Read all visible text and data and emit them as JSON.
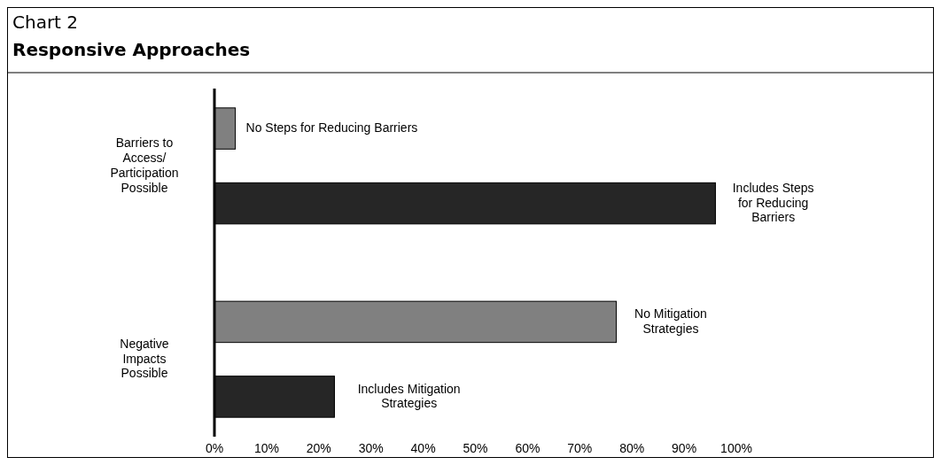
{
  "chart_data": {
    "type": "bar",
    "orientation": "horizontal",
    "title": "Chart 2",
    "subtitle": "Responsive Approaches",
    "categories": [
      "Barriers to\nAccess/\nParticipation\nPossible",
      "Negative\nImpacts\nPossible"
    ],
    "series": [
      {
        "color": "#808080",
        "values": [
          4,
          77
        ],
        "value_labels": [
          "No Steps for Reducing Barriers",
          "No Mitigation\nStrategies"
        ]
      },
      {
        "color": "#262626",
        "values": [
          96,
          23
        ],
        "value_labels": [
          "Includes Steps\nfor Reducing\nBarriers",
          "Includes Mitigation\nStrategies"
        ]
      }
    ],
    "xlim": [
      0,
      100
    ],
    "xticks": [
      {
        "value": 0,
        "label": "0%"
      },
      {
        "value": 10,
        "label": "10%"
      },
      {
        "value": 20,
        "label": "20%"
      },
      {
        "value": 30,
        "label": "30%"
      },
      {
        "value": 40,
        "label": "40%"
      },
      {
        "value": 50,
        "label": "50%"
      },
      {
        "value": 60,
        "label": "60%"
      },
      {
        "value": 70,
        "label": "70%"
      },
      {
        "value": 80,
        "label": "80%"
      },
      {
        "value": 90,
        "label": "90%"
      },
      {
        "value": 100,
        "label": "100%"
      }
    ],
    "grid": false
  }
}
